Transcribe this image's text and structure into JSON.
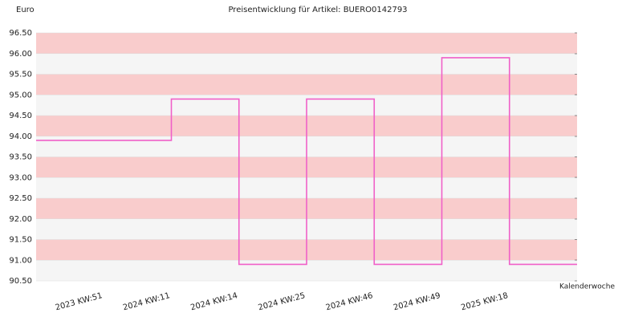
{
  "chart_data": {
    "type": "step",
    "title": "Preisentwicklung für Artikel: BUERO0142793",
    "y_label": "Euro",
    "x_label": "Kalenderwoche",
    "categories": [
      null,
      "2023 KW:51",
      "2024 KW:11",
      "2024 KW:14",
      "2024 KW:25",
      "2024 KW:46",
      "2024 KW:49",
      "2025 KW:18",
      null
    ],
    "values": [
      93.9,
      93.9,
      94.9,
      90.9,
      94.9,
      90.9,
      95.9,
      90.9,
      90.9
    ],
    "color": "#f060c8",
    "band_colors": [
      "#f5f5f5",
      "#f9cccc"
    ],
    "ylim": [
      90.5,
      96.5
    ],
    "yticks": [
      {
        "value": 90.5,
        "label": "90.50"
      },
      {
        "value": 91,
        "label": "91.00"
      },
      {
        "value": 91.5,
        "label": "91.50"
      },
      {
        "value": 92,
        "label": "92.00"
      },
      {
        "value": 92.5,
        "label": "92.50"
      },
      {
        "value": 93,
        "label": "93.00"
      },
      {
        "value": 93.5,
        "label": "93.50"
      },
      {
        "value": 94,
        "label": "94.00"
      },
      {
        "value": 94.5,
        "label": "94.50"
      },
      {
        "value": 95,
        "label": "95.00"
      },
      {
        "value": 95.5,
        "label": "95.50"
      },
      {
        "value": 96,
        "label": "96.00"
      },
      {
        "value": 96.5,
        "label": "96.50"
      }
    ]
  }
}
